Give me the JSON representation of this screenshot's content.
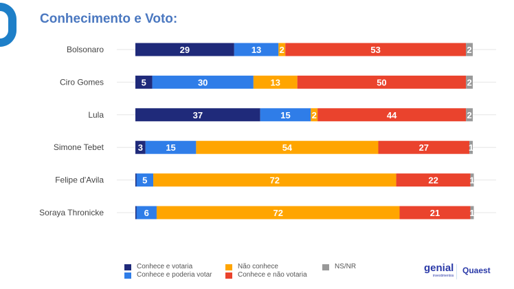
{
  "title": "Conhecimento e Voto:",
  "chart_data": {
    "type": "bar",
    "orientation": "horizontal",
    "stacked": true,
    "categories": [
      "Bolsonaro",
      "Ciro Gomes",
      "Lula",
      "Simone Tebet",
      "Felipe d'Avila",
      "Soraya Thronicke"
    ],
    "series": [
      {
        "name": "Conhece e votaria",
        "color": "#1f2a7a",
        "values": [
          29,
          5,
          37,
          3,
          0,
          0
        ]
      },
      {
        "name": "Conhece e poderia votar",
        "color": "#2f7de8",
        "values": [
          13,
          30,
          15,
          15,
          5,
          6
        ]
      },
      {
        "name": "Não conhece",
        "color": "#ffa500",
        "values": [
          2,
          13,
          2,
          54,
          72,
          72
        ]
      },
      {
        "name": "Conhece e não votaria",
        "color": "#ea432d",
        "values": [
          53,
          50,
          44,
          27,
          22,
          21
        ]
      },
      {
        "name": "NS/NR",
        "color": "#999999",
        "values": [
          2,
          2,
          2,
          1,
          1,
          1
        ]
      }
    ],
    "legend_position": "bottom",
    "grid": false
  },
  "logos": {
    "left": "genial",
    "left_sub": "investimentos",
    "right": "Quaest"
  }
}
